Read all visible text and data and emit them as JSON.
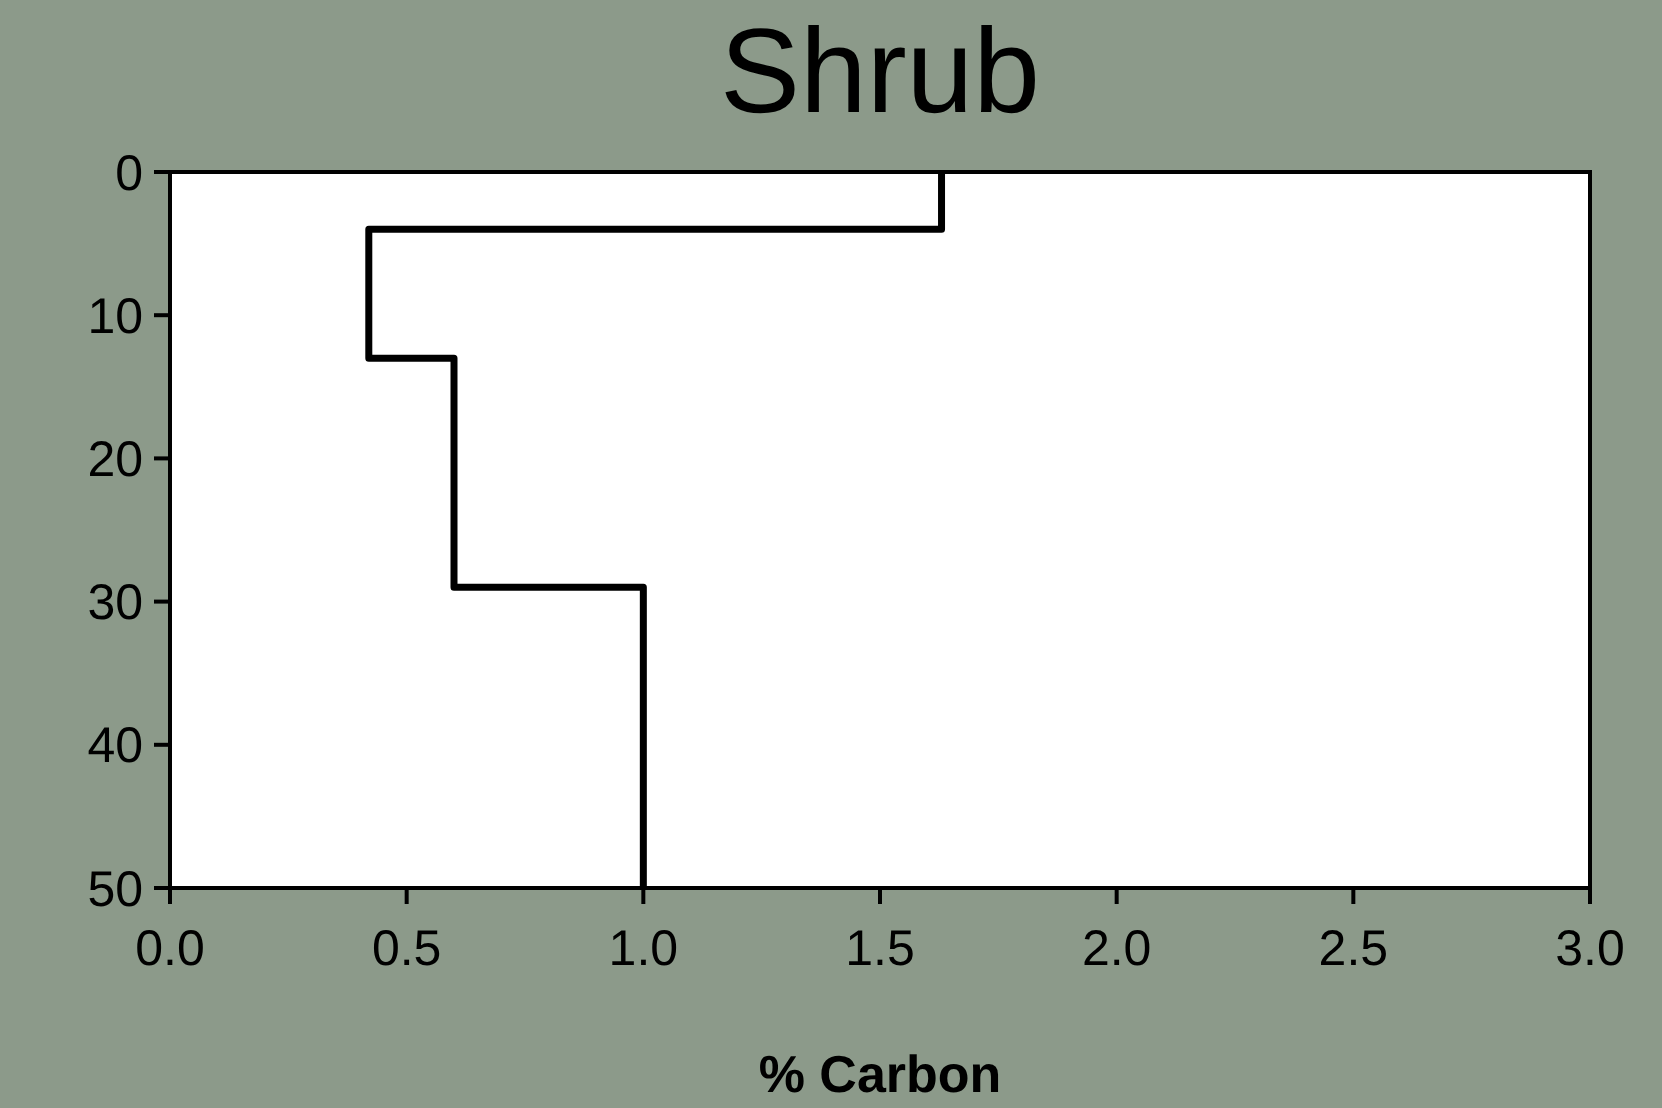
{
  "chart_data": {
    "type": "line",
    "title": "Shrub",
    "xlabel": "% Carbon",
    "series": [
      {
        "color": "#000000",
        "x": [
          1.63,
          1.63,
          0.42,
          0.42,
          0.6,
          0.6,
          1.0,
          1.0
        ],
        "values": [
          0,
          4,
          4,
          13,
          13,
          29,
          29,
          50
        ]
      }
    ],
    "xlim": [
      0,
      3
    ],
    "xticks": [
      {
        "value": 0,
        "label": "0.0"
      },
      {
        "value": 0.5,
        "label": "0.5"
      },
      {
        "value": 1,
        "label": "1.0"
      },
      {
        "value": 1.5,
        "label": "1.5"
      },
      {
        "value": 2,
        "label": "2.0"
      },
      {
        "value": 2.5,
        "label": "2.5"
      },
      {
        "value": 3,
        "label": "3.0"
      }
    ],
    "ylim": [
      50,
      0
    ],
    "yticks": [
      0,
      10,
      20,
      30,
      40,
      50
    ],
    "marker": "none",
    "line_style": "solid"
  }
}
